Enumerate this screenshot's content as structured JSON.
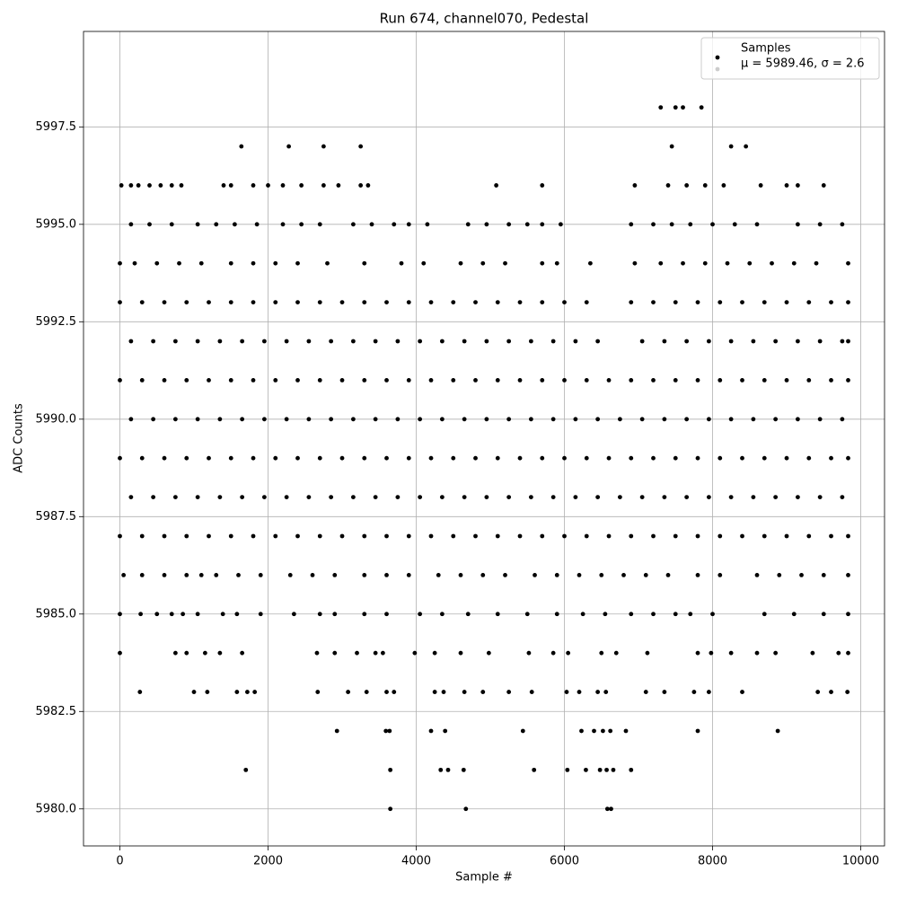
{
  "chart_data": {
    "type": "scatter",
    "title": "Run 674, channel070, Pedestal",
    "x_label": "Sample #",
    "y_label": "ADC Counts",
    "xlim": [
      -491,
      10321
    ],
    "ylim": [
      5979.05,
      5999.95
    ],
    "xticks": [
      0,
      2000,
      4000,
      6000,
      8000,
      10000
    ],
    "yticks": [
      {
        "value": 5980,
        "label": "5980.0"
      },
      5982.5,
      {
        "value": 5985,
        "label": "5985.0"
      },
      5987.5,
      {
        "value": 5990,
        "label": "5990.0"
      },
      5992.5,
      {
        "value": 5995,
        "label": "5995.0"
      },
      5997.5
    ],
    "grid": true,
    "legend": "upper right",
    "series": [
      {
        "name": "Samples",
        "color": "#000000",
        "x": [
          3650,
          4670,
          6580,
          6630,
          1700,
          3650,
          4330,
          4430,
          4640,
          5590,
          6040,
          6290,
          6480,
          6570,
          6660,
          6900,
          2930,
          3590,
          3640,
          4200,
          4390,
          5440,
          6230,
          6400,
          6520,
          6620,
          6830,
          7800,
          8880,
          270,
          1000,
          1180,
          1580,
          1720,
          1820,
          2670,
          3080,
          3330,
          3600,
          3700,
          4250,
          4370,
          4650,
          4900,
          5250,
          5560,
          6030,
          6200,
          6450,
          6560,
          7100,
          7350,
          7750,
          7950,
          8400,
          9420,
          9600,
          9820,
          0,
          750,
          900,
          1150,
          1350,
          1650,
          2660,
          2900,
          3200,
          3450,
          3550,
          3980,
          4250,
          4600,
          4980,
          5520,
          5850,
          6050,
          6500,
          6700,
          7120,
          7800,
          7980,
          8250,
          8600,
          8850,
          9350,
          9700,
          9830,
          0,
          280,
          500,
          700,
          850,
          1050,
          1390,
          1580,
          1900,
          2350,
          2700,
          2900,
          3300,
          3600,
          4050,
          4350,
          4700,
          5100,
          5500,
          5900,
          6250,
          6550,
          6900,
          7200,
          7500,
          7700,
          8000,
          8700,
          9100,
          9500,
          9830,
          50,
          300,
          600,
          900,
          1100,
          1300,
          1600,
          1900,
          2300,
          2600,
          2900,
          3300,
          3600,
          3900,
          4300,
          4600,
          4900,
          5200,
          5600,
          5900,
          6200,
          6500,
          6800,
          7100,
          7400,
          7800,
          8100,
          8600,
          8900,
          9200,
          9500,
          9830,
          0,
          300,
          600,
          900,
          1200,
          1500,
          1800,
          2100,
          2400,
          2700,
          3000,
          3300,
          3600,
          3900,
          4200,
          4500,
          4800,
          5100,
          5400,
          5700,
          6000,
          6300,
          6600,
          6900,
          7200,
          7500,
          7800,
          8100,
          8400,
          8700,
          9000,
          9300,
          9600,
          9830,
          150,
          450,
          750,
          1050,
          1350,
          1650,
          1950,
          2250,
          2550,
          2850,
          3150,
          3450,
          3750,
          4050,
          4350,
          4650,
          4950,
          5250,
          5550,
          5850,
          6150,
          6450,
          6750,
          7050,
          7350,
          7650,
          7950,
          8250,
          8550,
          8850,
          9150,
          9450,
          9750,
          0,
          300,
          600,
          900,
          1200,
          1500,
          1800,
          2100,
          2400,
          2700,
          3000,
          3300,
          3600,
          3900,
          4200,
          4500,
          4800,
          5100,
          5400,
          5700,
          6000,
          6300,
          6600,
          6900,
          7200,
          7500,
          7800,
          8100,
          8400,
          8700,
          9000,
          9300,
          9600,
          9830,
          150,
          450,
          750,
          1050,
          1350,
          1650,
          1950,
          2250,
          2550,
          2850,
          3150,
          3450,
          3750,
          4050,
          4350,
          4650,
          4950,
          5250,
          5550,
          5850,
          6150,
          6450,
          6750,
          7050,
          7350,
          7650,
          7950,
          8250,
          8550,
          8850,
          9150,
          9450,
          9750,
          0,
          300,
          600,
          900,
          1200,
          1500,
          1800,
          2100,
          2400,
          2700,
          3000,
          3300,
          3600,
          3900,
          4200,
          4500,
          4800,
          5100,
          5400,
          5700,
          6000,
          6300,
          6600,
          6900,
          7200,
          7500,
          7800,
          8100,
          8400,
          8700,
          9000,
          9300,
          9600,
          9830,
          150,
          450,
          750,
          1050,
          1350,
          1650,
          1950,
          2250,
          2550,
          2850,
          3150,
          3450,
          3750,
          4050,
          4350,
          4650,
          4950,
          5250,
          5550,
          5850,
          6150,
          6450,
          7050,
          7350,
          7650,
          7950,
          8250,
          8550,
          8850,
          9150,
          9450,
          9750,
          9830,
          0,
          300,
          600,
          900,
          1200,
          1500,
          1800,
          2100,
          2400,
          2700,
          3000,
          3300,
          3600,
          3900,
          4200,
          4500,
          4800,
          5100,
          5400,
          5700,
          6000,
          6300,
          6900,
          7200,
          7500,
          7800,
          8100,
          8400,
          8700,
          9000,
          9300,
          9600,
          9830,
          0,
          200,
          500,
          800,
          1100,
          1500,
          1800,
          2100,
          2400,
          2800,
          3300,
          3800,
          4100,
          4600,
          4900,
          5200,
          5700,
          5900,
          6350,
          6950,
          7300,
          7600,
          7900,
          8200,
          8500,
          8800,
          9100,
          9400,
          9830,
          150,
          400,
          700,
          1050,
          1300,
          1550,
          1850,
          2200,
          2450,
          2700,
          3150,
          3400,
          3700,
          3900,
          4150,
          4700,
          4950,
          5250,
          5500,
          5700,
          5950,
          6900,
          7200,
          7450,
          7700,
          8000,
          8300,
          8600,
          9150,
          9450,
          9750,
          20,
          150,
          250,
          400,
          550,
          700,
          830,
          1400,
          1500,
          1800,
          2000,
          2200,
          2450,
          2750,
          2950,
          3250,
          3350,
          5080,
          5700,
          6950,
          7400,
          7650,
          7900,
          8150,
          8650,
          9000,
          9150,
          9500,
          1640,
          2280,
          2750,
          3250,
          7450,
          8250,
          8450,
          7300,
          7500,
          7600,
          7850
        ],
        "values": [
          5980,
          5980,
          5980,
          5980,
          5981,
          5981,
          5981,
          5981,
          5981,
          5981,
          5981,
          5981,
          5981,
          5981,
          5981,
          5981,
          5982,
          5982,
          5982,
          5982,
          5982,
          5982,
          5982,
          5982,
          5982,
          5982,
          5982,
          5982,
          5982,
          5983,
          5983,
          5983,
          5983,
          5983,
          5983,
          5983,
          5983,
          5983,
          5983,
          5983,
          5983,
          5983,
          5983,
          5983,
          5983,
          5983,
          5983,
          5983,
          5983,
          5983,
          5983,
          5983,
          5983,
          5983,
          5983,
          5983,
          5983,
          5983,
          5984,
          5984,
          5984,
          5984,
          5984,
          5984,
          5984,
          5984,
          5984,
          5984,
          5984,
          5984,
          5984,
          5984,
          5984,
          5984,
          5984,
          5984,
          5984,
          5984,
          5984,
          5984,
          5984,
          5984,
          5984,
          5984,
          5984,
          5984,
          5984,
          5985,
          5985,
          5985,
          5985,
          5985,
          5985,
          5985,
          5985,
          5985,
          5985,
          5985,
          5985,
          5985,
          5985,
          5985,
          5985,
          5985,
          5985,
          5985,
          5985,
          5985,
          5985,
          5985,
          5985,
          5985,
          5985,
          5985,
          5985,
          5985,
          5985,
          5985,
          5986,
          5986,
          5986,
          5986,
          5986,
          5986,
          5986,
          5986,
          5986,
          5986,
          5986,
          5986,
          5986,
          5986,
          5986,
          5986,
          5986,
          5986,
          5986,
          5986,
          5986,
          5986,
          5986,
          5986,
          5986,
          5986,
          5986,
          5986,
          5986,
          5986,
          5986,
          5986,
          5987,
          5987,
          5987,
          5987,
          5987,
          5987,
          5987,
          5987,
          5987,
          5987,
          5987,
          5987,
          5987,
          5987,
          5987,
          5987,
          5987,
          5987,
          5987,
          5987,
          5987,
          5987,
          5987,
          5987,
          5987,
          5987,
          5987,
          5987,
          5987,
          5987,
          5987,
          5987,
          5987,
          5987,
          5988,
          5988,
          5988,
          5988,
          5988,
          5988,
          5988,
          5988,
          5988,
          5988,
          5988,
          5988,
          5988,
          5988,
          5988,
          5988,
          5988,
          5988,
          5988,
          5988,
          5988,
          5988,
          5988,
          5988,
          5988,
          5988,
          5988,
          5988,
          5988,
          5988,
          5988,
          5988,
          5988,
          5989,
          5989,
          5989,
          5989,
          5989,
          5989,
          5989,
          5989,
          5989,
          5989,
          5989,
          5989,
          5989,
          5989,
          5989,
          5989,
          5989,
          5989,
          5989,
          5989,
          5989,
          5989,
          5989,
          5989,
          5989,
          5989,
          5989,
          5989,
          5989,
          5989,
          5989,
          5989,
          5989,
          5989,
          5990,
          5990,
          5990,
          5990,
          5990,
          5990,
          5990,
          5990,
          5990,
          5990,
          5990,
          5990,
          5990,
          5990,
          5990,
          5990,
          5990,
          5990,
          5990,
          5990,
          5990,
          5990,
          5990,
          5990,
          5990,
          5990,
          5990,
          5990,
          5990,
          5990,
          5990,
          5990,
          5990,
          5991,
          5991,
          5991,
          5991,
          5991,
          5991,
          5991,
          5991,
          5991,
          5991,
          5991,
          5991,
          5991,
          5991,
          5991,
          5991,
          5991,
          5991,
          5991,
          5991,
          5991,
          5991,
          5991,
          5991,
          5991,
          5991,
          5991,
          5991,
          5991,
          5991,
          5991,
          5991,
          5991,
          5991,
          5992,
          5992,
          5992,
          5992,
          5992,
          5992,
          5992,
          5992,
          5992,
          5992,
          5992,
          5992,
          5992,
          5992,
          5992,
          5992,
          5992,
          5992,
          5992,
          5992,
          5992,
          5992,
          5992,
          5992,
          5992,
          5992,
          5992,
          5992,
          5992,
          5992,
          5992,
          5992,
          5992,
          5993,
          5993,
          5993,
          5993,
          5993,
          5993,
          5993,
          5993,
          5993,
          5993,
          5993,
          5993,
          5993,
          5993,
          5993,
          5993,
          5993,
          5993,
          5993,
          5993,
          5993,
          5993,
          5993,
          5993,
          5993,
          5993,
          5993,
          5993,
          5993,
          5993,
          5993,
          5993,
          5993,
          5994,
          5994,
          5994,
          5994,
          5994,
          5994,
          5994,
          5994,
          5994,
          5994,
          5994,
          5994,
          5994,
          5994,
          5994,
          5994,
          5994,
          5994,
          5994,
          5994,
          5994,
          5994,
          5994,
          5994,
          5994,
          5994,
          5994,
          5994,
          5994,
          5995,
          5995,
          5995,
          5995,
          5995,
          5995,
          5995,
          5995,
          5995,
          5995,
          5995,
          5995,
          5995,
          5995,
          5995,
          5995,
          5995,
          5995,
          5995,
          5995,
          5995,
          5995,
          5995,
          5995,
          5995,
          5995,
          5995,
          5995,
          5995,
          5995,
          5995,
          5996,
          5996,
          5996,
          5996,
          5996,
          5996,
          5996,
          5996,
          5996,
          5996,
          5996,
          5996,
          5996,
          5996,
          5996,
          5996,
          5996,
          5996,
          5996,
          5996,
          5996,
          5996,
          5996,
          5996,
          5996,
          5996,
          5996,
          5996,
          5997,
          5997,
          5997,
          5997,
          5997,
          5997,
          5997,
          5998,
          5998,
          5998,
          5998
        ]
      },
      {
        "name": "μ = 5989.46, σ = 2.6",
        "color": "#cccccc",
        "x": [],
        "values": []
      }
    ]
  }
}
